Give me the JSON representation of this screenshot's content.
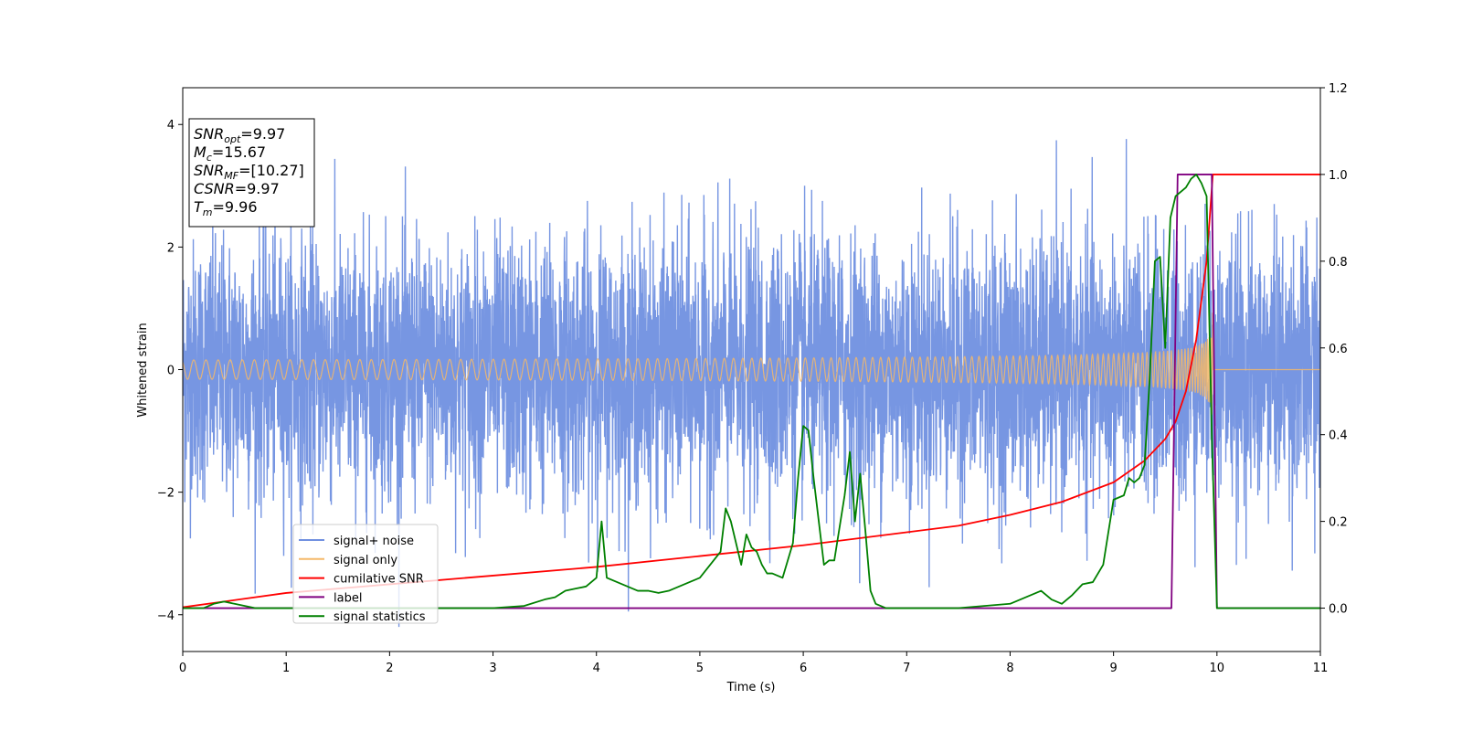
{
  "chart_data": {
    "type": "line",
    "xlabel": "Time (s)",
    "ylabel": "Whitened strain",
    "xlim": [
      0,
      11
    ],
    "ylim_left": [
      -4.6,
      4.6
    ],
    "ylim_right": [
      -0.1,
      1.2
    ],
    "x_ticks": [
      "0",
      "1",
      "2",
      "3",
      "4",
      "5",
      "6",
      "7",
      "8",
      "9",
      "10",
      "11"
    ],
    "y_ticks_left": [
      "4",
      "2",
      "0",
      "−2",
      "−4"
    ],
    "y_ticks_right": [
      "1.2",
      "1.0",
      "0.8",
      "0.6",
      "0.4",
      "0.2",
      "0.0"
    ],
    "annotation": [
      {
        "name": "SNR",
        "sub": "opt",
        "value": "=9.97"
      },
      {
        "name": "M",
        "sub": "c",
        "value": "=15.67"
      },
      {
        "name": "SNR",
        "sub": "MF",
        "value": "=[10.27]"
      },
      {
        "name": "CSNR",
        "sub": "",
        "value": "=9.97"
      },
      {
        "name": "T",
        "sub": "m",
        "value": "=9.96"
      }
    ],
    "legend": {
      "position": "lower-left",
      "entries": [
        {
          "label": "signal+ noise",
          "color": "#7090e0"
        },
        {
          "label": "signal only",
          "color": "#f5b869"
        },
        {
          "label": "cumilative SNR",
          "color": "#ff0000"
        },
        {
          "label": "label",
          "color": "#800080"
        },
        {
          "label": "signal statistics",
          "color": "#008000"
        }
      ]
    },
    "series": [
      {
        "name": "signal+ noise",
        "axis": "left",
        "description_kind": "noise",
        "y_range_approx": [
          -4.2,
          4.2
        ],
        "color": "#7090e0"
      },
      {
        "name": "signal only",
        "axis": "left",
        "description_kind": "chirp",
        "merger_time": 9.96,
        "end_amplitude": 1.0,
        "color": "#f5b869"
      },
      {
        "name": "cumilative SNR",
        "axis": "right",
        "x": [
          0,
          1,
          2,
          3,
          4,
          5,
          6,
          7,
          7.5,
          8,
          8.5,
          9,
          9.3,
          9.5,
          9.6,
          9.7,
          9.8,
          9.9,
          9.96,
          10,
          11
        ],
        "y": [
          0.002,
          0.035,
          0.055,
          0.075,
          0.095,
          0.12,
          0.145,
          0.175,
          0.19,
          0.215,
          0.245,
          0.29,
          0.34,
          0.39,
          0.43,
          0.5,
          0.62,
          0.8,
          1.0,
          1.0,
          1.0
        ],
        "color": "#ff0000"
      },
      {
        "name": "label",
        "axis": "right",
        "x": [
          0,
          9.56,
          9.62,
          9.95,
          10.0,
          11
        ],
        "y": [
          0.0,
          0.0,
          1.0,
          1.0,
          0.0,
          0.0
        ],
        "color": "#800080"
      },
      {
        "name": "signal statistics",
        "axis": "right",
        "x": [
          0,
          0.2,
          0.3,
          0.4,
          0.5,
          0.7,
          1.0,
          2.0,
          2.5,
          3.0,
          3.3,
          3.5,
          3.6,
          3.7,
          3.8,
          3.9,
          4.0,
          4.05,
          4.1,
          4.2,
          4.3,
          4.4,
          4.5,
          4.6,
          4.7,
          4.8,
          4.9,
          5.0,
          5.1,
          5.2,
          5.25,
          5.3,
          5.4,
          5.45,
          5.5,
          5.55,
          5.6,
          5.65,
          5.7,
          5.8,
          5.9,
          5.95,
          6.0,
          6.05,
          6.1,
          6.15,
          6.2,
          6.25,
          6.3,
          6.4,
          6.45,
          6.5,
          6.55,
          6.6,
          6.65,
          6.7,
          6.8,
          6.9,
          7.0,
          7.5,
          8.0,
          8.2,
          8.3,
          8.4,
          8.5,
          8.6,
          8.7,
          8.8,
          8.9,
          9.0,
          9.1,
          9.15,
          9.2,
          9.25,
          9.3,
          9.35,
          9.4,
          9.45,
          9.5,
          9.55,
          9.6,
          9.65,
          9.7,
          9.75,
          9.8,
          9.85,
          9.9,
          9.95,
          10.0,
          10.1,
          11.0
        ],
        "y": [
          0.0,
          0.0,
          0.01,
          0.015,
          0.01,
          0.0,
          0.0,
          0.0,
          0.0,
          0.0,
          0.005,
          0.02,
          0.025,
          0.04,
          0.045,
          0.05,
          0.07,
          0.2,
          0.07,
          0.06,
          0.05,
          0.04,
          0.04,
          0.035,
          0.04,
          0.05,
          0.06,
          0.07,
          0.1,
          0.13,
          0.23,
          0.2,
          0.1,
          0.17,
          0.14,
          0.13,
          0.1,
          0.08,
          0.08,
          0.07,
          0.15,
          0.3,
          0.42,
          0.41,
          0.3,
          0.2,
          0.1,
          0.11,
          0.11,
          0.26,
          0.36,
          0.2,
          0.31,
          0.18,
          0.04,
          0.01,
          0.0,
          0.0,
          0.0,
          0.0,
          0.01,
          0.03,
          0.04,
          0.02,
          0.01,
          0.03,
          0.055,
          0.06,
          0.1,
          0.25,
          0.26,
          0.3,
          0.29,
          0.3,
          0.33,
          0.53,
          0.8,
          0.81,
          0.6,
          0.9,
          0.95,
          0.96,
          0.97,
          0.99,
          1.0,
          0.98,
          0.95,
          0.4,
          0.0,
          0.0,
          0.0
        ],
        "color": "#008000"
      }
    ]
  }
}
